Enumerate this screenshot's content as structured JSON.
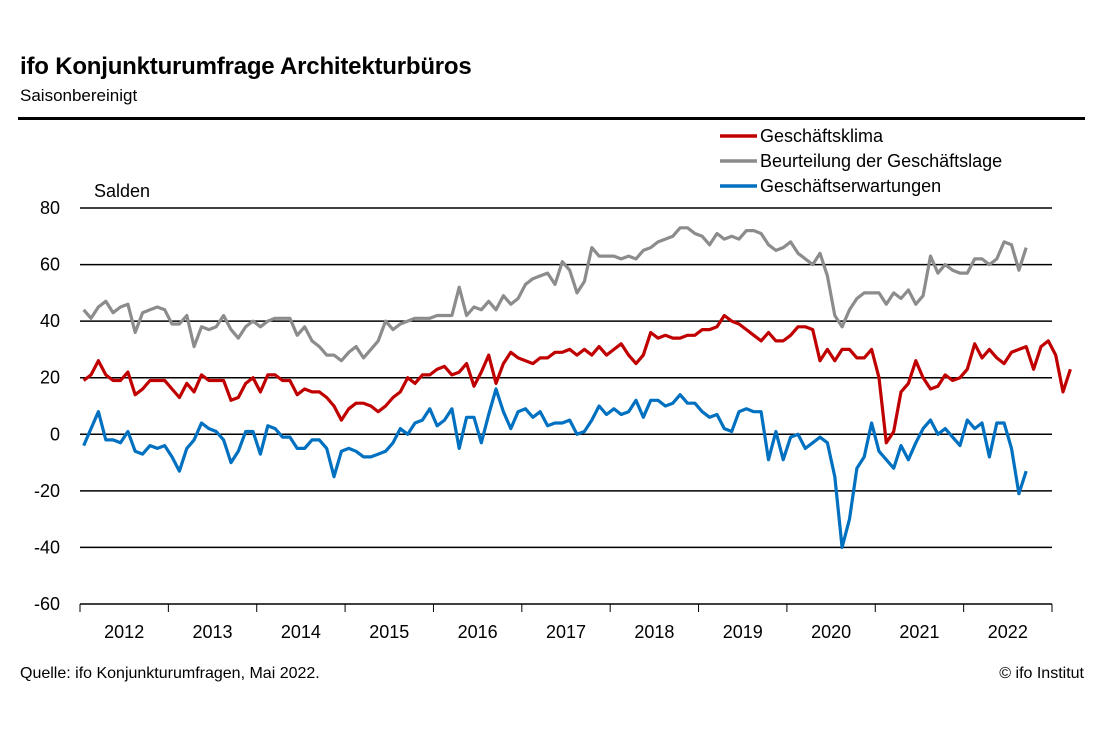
{
  "header": {
    "title": "ifo Konjunkturumfrage Architekturbüros",
    "subtitle": "Saisonbereinigt"
  },
  "footer": {
    "source": "Quelle: ifo Konjunkturumfragen, Mai 2022.",
    "copyright": "© ifo Institut"
  },
  "chart_data": {
    "type": "line",
    "title": "ifo Konjunkturumfrage Architekturbüros",
    "subtitle": "Saisonbereinigt",
    "ylabel": "Salden",
    "xlabel": "",
    "ylim": [
      -60,
      80
    ],
    "yticks": [
      80,
      60,
      40,
      20,
      0,
      -20,
      -40,
      -60
    ],
    "xlim": [
      "2012-01",
      "2022-12"
    ],
    "x_tick_labels": [
      "2012",
      "2013",
      "2014",
      "2015",
      "2016",
      "2017",
      "2018",
      "2019",
      "2020",
      "2021",
      "2022"
    ],
    "x_start": "2012-01",
    "frequency": "monthly",
    "grid": true,
    "legend_position": "top-right",
    "series": [
      {
        "name": "Geschäftsklima",
        "color": "#C00000",
        "values": [
          19,
          21,
          26,
          21,
          19,
          19,
          22,
          14,
          16,
          19,
          19,
          19,
          16,
          13,
          18,
          15,
          21,
          19,
          19,
          19,
          12,
          13,
          18,
          20,
          15,
          21,
          21,
          19,
          19,
          14,
          16,
          15,
          15,
          13,
          10,
          5,
          9,
          11,
          11,
          10,
          8,
          10,
          13,
          15,
          20,
          18,
          21,
          21,
          23,
          24,
          21,
          22,
          25,
          17,
          22,
          28,
          18,
          25,
          29,
          27,
          26,
          25,
          27,
          27,
          29,
          29,
          30,
          28,
          30,
          28,
          31,
          28,
          30,
          32,
          28,
          25,
          28,
          36,
          34,
          35,
          34,
          34,
          35,
          35,
          37,
          37,
          38,
          42,
          40,
          39,
          37,
          35,
          33,
          36,
          33,
          33,
          35,
          38,
          38,
          37,
          26,
          30,
          26,
          30,
          30,
          27,
          27,
          30,
          20,
          -3,
          1,
          15,
          18,
          26,
          20,
          16,
          17,
          21,
          19,
          20,
          23,
          32,
          27,
          30,
          27,
          25,
          29,
          30,
          31,
          23,
          31,
          33,
          28,
          15,
          23
        ],
        "values_note": "Monthly estimates Jan 2012 – May 2022 (125 values)"
      },
      {
        "name": "Beurteilung der Geschäftslage",
        "color": "#8C8C8C",
        "values": [
          44,
          41,
          45,
          47,
          43,
          45,
          46,
          36,
          43,
          44,
          45,
          44,
          39,
          39,
          42,
          31,
          38,
          37,
          38,
          42,
          37,
          34,
          38,
          40,
          38,
          40,
          41,
          41,
          41,
          35,
          38,
          33,
          31,
          28,
          28,
          26,
          29,
          31,
          27,
          30,
          33,
          40,
          37,
          39,
          40,
          41,
          41,
          41,
          42,
          42,
          42,
          52,
          42,
          45,
          44,
          47,
          44,
          49,
          46,
          48,
          53,
          55,
          56,
          57,
          53,
          61,
          58,
          50,
          54,
          66,
          63,
          63,
          63,
          62,
          63,
          62,
          65,
          66,
          68,
          69,
          70,
          73,
          73,
          71,
          70,
          67,
          71,
          69,
          70,
          69,
          72,
          72,
          71,
          67,
          65,
          66,
          68,
          64,
          62,
          60,
          64,
          56,
          42,
          38,
          44,
          48,
          50,
          50,
          50,
          46,
          50,
          48,
          51,
          46,
          49,
          63,
          57,
          60,
          58,
          57,
          57,
          62,
          62,
          60,
          62,
          68,
          67,
          58,
          66
        ],
        "values_note": "Monthly estimates Jan 2012 – May 2022"
      },
      {
        "name": "Geschäftserwartungen",
        "color": "#0070C0",
        "values": [
          -4,
          2,
          8,
          -2,
          -2,
          -3,
          1,
          -6,
          -7,
          -4,
          -5,
          -4,
          -8,
          -13,
          -5,
          -2,
          4,
          2,
          1,
          -2,
          -10,
          -6,
          1,
          1,
          -7,
          3,
          2,
          -1,
          -1,
          -5,
          -5,
          -2,
          -2,
          -5,
          -15,
          -6,
          -5,
          -6,
          -8,
          -8,
          -7,
          -6,
          -3,
          2,
          0,
          4,
          5,
          9,
          3,
          5,
          9,
          -5,
          6,
          6,
          -3,
          7,
          16,
          8,
          2,
          8,
          9,
          6,
          8,
          3,
          4,
          4,
          5,
          0,
          1,
          5,
          10,
          7,
          9,
          7,
          8,
          12,
          6,
          12,
          12,
          10,
          11,
          14,
          11,
          11,
          8,
          6,
          7,
          2,
          1,
          8,
          9,
          8,
          8,
          -9,
          1,
          -9,
          -1,
          0,
          -5,
          -3,
          -1,
          -3,
          -15,
          -40,
          -30,
          -12,
          -8,
          4,
          -6,
          -9,
          -12,
          -4,
          -9,
          -3,
          2,
          5,
          0,
          2,
          -1,
          -4,
          5,
          2,
          4,
          -8,
          4,
          4,
          -5,
          -21,
          -13
        ],
        "values_note": "Monthly estimates Jan 2012 – May 2022"
      }
    ]
  }
}
